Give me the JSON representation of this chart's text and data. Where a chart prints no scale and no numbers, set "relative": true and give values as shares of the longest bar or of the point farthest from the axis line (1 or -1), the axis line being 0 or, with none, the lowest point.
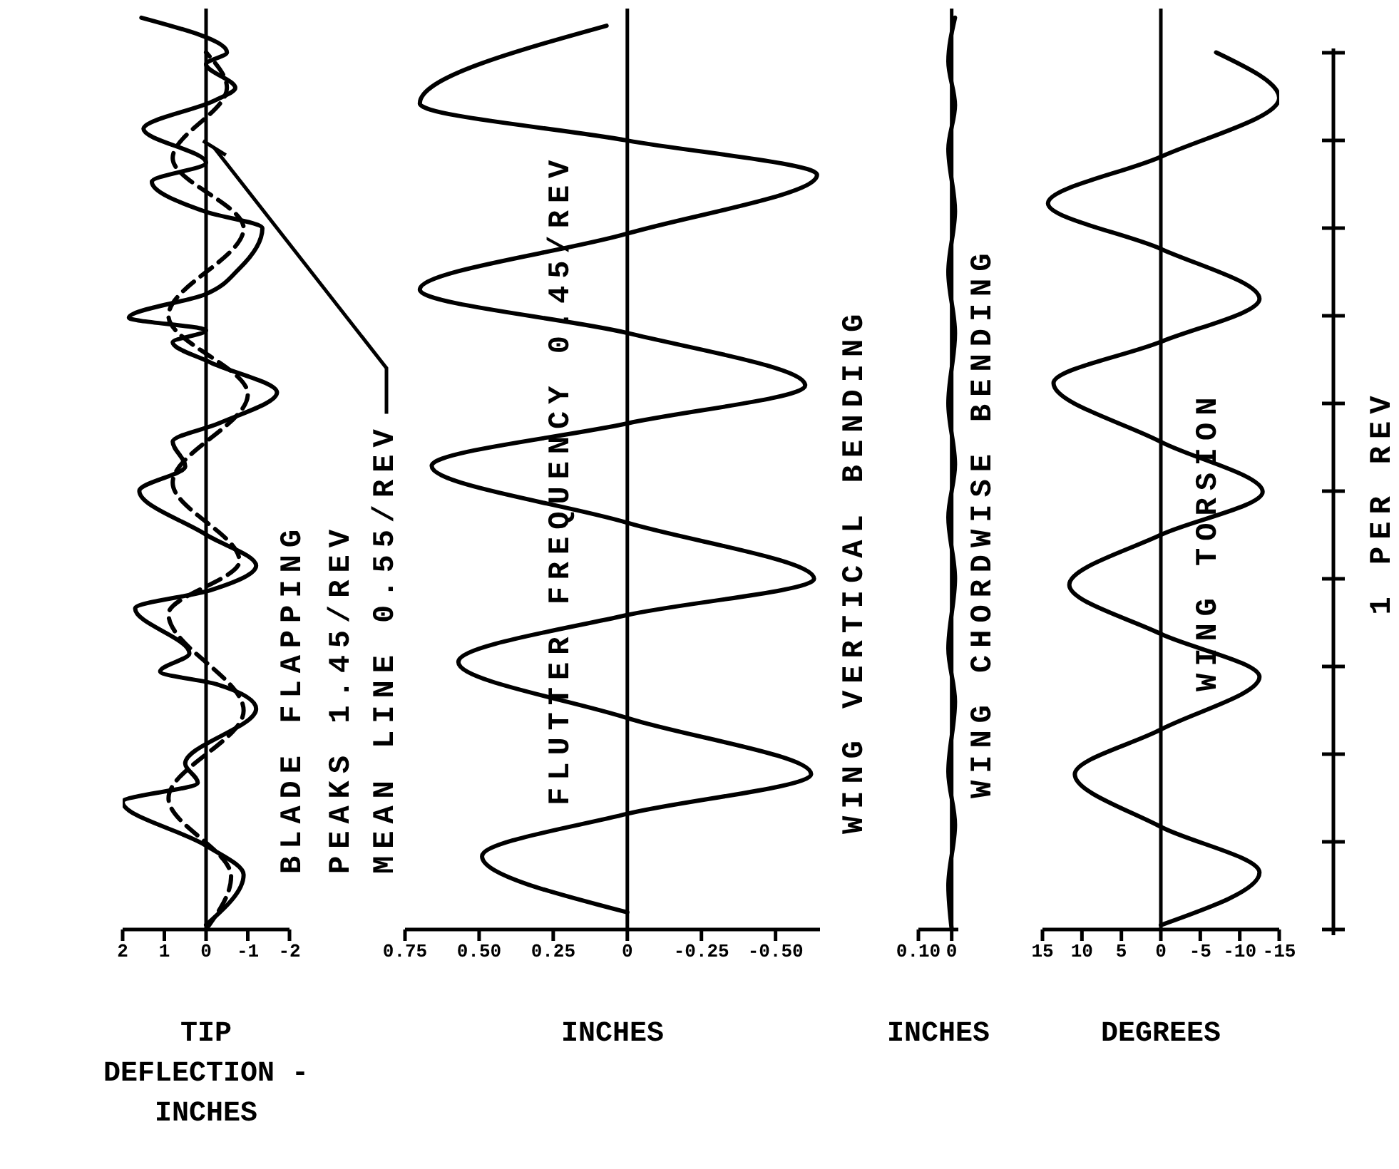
{
  "chart_data": [
    {
      "type": "line",
      "relative": true,
      "xlim": [
        2,
        -2
      ],
      "xticks": [
        2,
        1,
        0,
        -1,
        -2
      ],
      "xlabel": "TIP DEFLECTION - INCHES",
      "tick_labels": "x",
      "annotations": [
        "BLADE FLAPPING",
        "PEAKS 1.45/REV",
        {
          "text": "MEAN LINE 0.55/REV",
          "x": -0.2,
          "y": 0.857
        }
      ],
      "ref_lines": [
        {
          "axis": "x",
          "value": 0
        }
      ],
      "series": [
        {
          "color": "#000000",
          "values": [
            0.005,
            0.06,
            0.092,
            0.14,
            0.161,
            0.182,
            0.242,
            0.269,
            0.283,
            0.303,
            0.352,
            0.372,
            0.399,
            0.433,
            0.481,
            0.508,
            0.535,
            0.555,
            0.589,
            0.622,
            0.644,
            0.657,
            0.671,
            0.697,
            0.725,
            0.769,
            0.787,
            0.82,
            0.841,
            0.878,
            0.909,
            0.923,
            0.949,
            0.962,
            1
          ],
          "x": [
            0,
            -0.9,
            0,
            2,
            0.2,
            0.5,
            -1.2,
            -0.25,
            1.1,
            0.4,
            1.7,
            -0.1,
            -1.2,
            0,
            1.6,
            0.5,
            0.8,
            -0.3,
            -1.7,
            -0.1,
            0.8,
            0,
            1.85,
            0,
            -0.8,
            -1.35,
            0,
            1.3,
            0,
            1.5,
            -0.2,
            -0.7,
            0,
            -0.5,
            1.55
          ]
        },
        {
          "color": "#000000",
          "line_style": "dashed",
          "values": [
            0,
            0.058,
            0.144,
            0.24,
            0.346,
            0.404,
            0.49,
            0.587,
            0.673,
            0.769,
            0.846,
            0.923,
            0.962
          ],
          "x": [
            0,
            -0.6,
            0.9,
            -0.9,
            0.9,
            -0.8,
            0.8,
            -1.0,
            0.9,
            -0.9,
            0.8,
            -0.5,
            0
          ]
        }
      ]
    },
    {
      "type": "line",
      "relative": true,
      "xlim": [
        0.75,
        -0.65
      ],
      "xticks": [
        {
          "value": 0.75,
          "label": "0.75"
        },
        {
          "value": 0.5,
          "label": "0.50"
        },
        {
          "value": 0.25,
          "label": "0.25"
        },
        {
          "value": 0,
          "label": "0"
        },
        {
          "value": -0.25,
          "label": "-0.25"
        },
        {
          "value": -0.5,
          "label": "-0.50"
        }
      ],
      "xlabel": "INCHES",
      "tick_labels": "x",
      "annotations": [
        "FLUTTER FREQUENCY 0.45/REV",
        "WING VERTICAL BENDING"
      ],
      "ref_lines": [
        {
          "axis": "x",
          "value": 0
        }
      ],
      "series": [
        {
          "color": "#000000",
          "values": [
            0.019,
            0.081,
            0.128,
            0.172,
            0.234,
            0.296,
            0.348,
            0.388,
            0.45,
            0.513,
            0.56,
            0.602,
            0.66,
            0.708,
            0.77,
            0.835,
            0.873,
            0.914,
            1
          ],
          "x": [
            0,
            0.49,
            0,
            -0.62,
            0,
            0.57,
            0,
            -0.63,
            0,
            0.66,
            0,
            -0.6,
            0,
            0.7,
            0,
            -0.64,
            0,
            0.7,
            0.07
          ]
        }
      ]
    },
    {
      "type": "line",
      "relative": true,
      "xlim": [
        0.1,
        -0.02
      ],
      "xticks": [
        {
          "value": 0.1,
          "label": "0.10"
        },
        0
      ],
      "xlabel": "INCHES",
      "tick_labels": "x",
      "annotations": [
        "WING CHORDWISE BENDING"
      ],
      "ref_lines": [
        {
          "axis": "x",
          "value": 0
        }
      ],
      "series": [
        {
          "color": "#000000",
          "values": [
            0,
            0.048,
            0.115,
            0.173,
            0.25,
            0.308,
            0.385,
            0.452,
            0.51,
            0.577,
            0.654,
            0.721,
            0.788,
            0.856,
            0.904,
            0.952,
            1
          ],
          "x": [
            0,
            0.01,
            -0.01,
            0.01,
            -0.01,
            0.01,
            -0.01,
            0.01,
            -0.01,
            0.01,
            -0.01,
            0.01,
            -0.01,
            0.01,
            -0.01,
            0.01,
            -0.01
          ]
        }
      ]
    },
    {
      "type": "line",
      "relative": true,
      "ylabel": "1 PER REV",
      "xlim": [
        15,
        -15
      ],
      "xticks": [
        15,
        10,
        5,
        0,
        -5,
        -10,
        -15
      ],
      "xlabel": "DEGREES",
      "tick_labels": "x",
      "annotations": [
        "WING TORSION"
      ],
      "ref_lines": [
        {
          "axis": "x",
          "value": 0
        }
      ],
      "series": [
        {
          "color": "#000000",
          "values": [
            0.005,
            0.065,
            0.117,
            0.177,
            0.228,
            0.288,
            0.337,
            0.393,
            0.45,
            0.499,
            0.556,
            0.623,
            0.67,
            0.719,
            0.776,
            0.828,
            0.881,
            0.948,
            1
          ],
          "x": [
            0,
            -12.5,
            0,
            10.9,
            0,
            -12.5,
            0,
            11.6,
            0,
            -12.9,
            0,
            13.6,
            0,
            -12.5,
            0,
            14.3,
            0,
            -15,
            -7
          ]
        }
      ]
    }
  ]
}
